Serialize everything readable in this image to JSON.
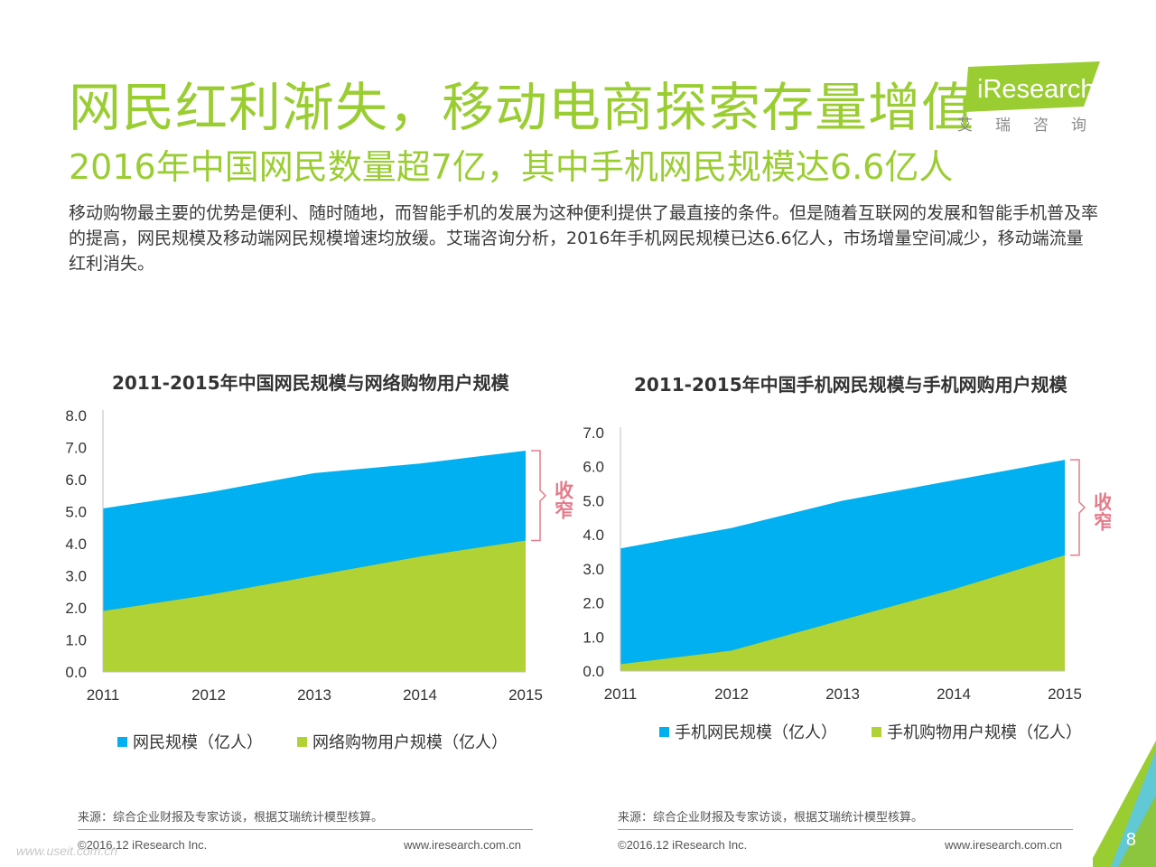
{
  "header": {
    "title": "网民红利渐失，移动电商探索存量增值",
    "subtitle": "2016年中国网民数量超7亿，其中手机网民规模达6.6亿人",
    "body": "移动购物最主要的优势是便利、随时随地，而智能手机的发展为这种便利提供了最直接的条件。但是随着互联网的发展和智能手机普及率的提高，网民规模及移动端网民规模增速均放缓。艾瑞咨询分析，2016年手机网民规模已达6.6亿人，市场增量空间减少，移动端流量红利消失。"
  },
  "logo": {
    "text": "iResearch",
    "sub": "艾瑞咨询"
  },
  "colors": {
    "accent": "#9acd32",
    "blue": "#00b0f0",
    "green": "#b0d235",
    "bracket": "#e57b8a"
  },
  "chart_data": [
    {
      "type": "area",
      "title": "2011-2015年中国网民规模与网络购物用户规模",
      "categories": [
        "2011",
        "2012",
        "2013",
        "2014",
        "2015"
      ],
      "series": [
        {
          "name": "网民规模（亿人）",
          "values": [
            5.1,
            5.6,
            6.2,
            6.5,
            6.9
          ],
          "color": "#00b0f0"
        },
        {
          "name": "网络购物用户规模（亿人）",
          "values": [
            1.9,
            2.4,
            3.0,
            3.6,
            4.1
          ],
          "color": "#b0d235"
        }
      ],
      "ylim": [
        0,
        8
      ],
      "yticks": [
        "0.0",
        "1.0",
        "2.0",
        "3.0",
        "4.0",
        "5.0",
        "6.0",
        "7.0",
        "8.0"
      ],
      "annotation": "收窄",
      "grid": false,
      "legend": "bottom"
    },
    {
      "type": "area",
      "title": "2011-2015年中国手机网民规模与手机网购用户规模",
      "categories": [
        "2011",
        "2012",
        "2013",
        "2014",
        "2015"
      ],
      "series": [
        {
          "name": "手机网民规模（亿人）",
          "values": [
            3.6,
            4.2,
            5.0,
            5.6,
            6.2
          ],
          "color": "#00b0f0"
        },
        {
          "name": "手机购物用户规模（亿人）",
          "values": [
            0.2,
            0.6,
            1.5,
            2.4,
            3.4
          ],
          "color": "#b0d235"
        }
      ],
      "ylim": [
        0,
        7
      ],
      "yticks": [
        "0.0",
        "1.0",
        "2.0",
        "3.0",
        "4.0",
        "5.0",
        "6.0",
        "7.0"
      ],
      "annotation": "收窄",
      "grid": false,
      "legend": "bottom"
    }
  ],
  "footer": {
    "source": "来源：综合企业财报及专家访谈，根据艾瑞统计模型核算。",
    "copyright": "©2016.12 iResearch Inc.",
    "url": "www.iresearch.com.cn",
    "page": "8",
    "watermark": "www.useit.com.cn"
  }
}
